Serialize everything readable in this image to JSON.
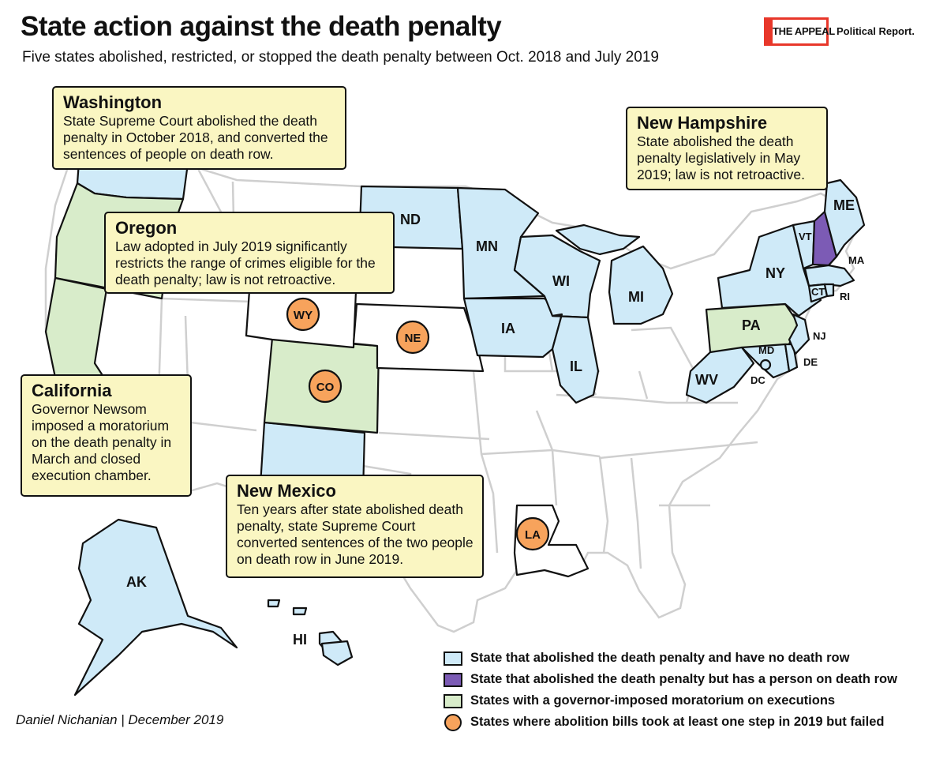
{
  "header": {
    "title": "State action against the death penalty",
    "subtitle": "Five states abolished, restricted, or stopped the death penalty between Oct. 2018 and July 2019"
  },
  "logo": {
    "brand": "THE APPEAL",
    "product": "Political Report."
  },
  "colors": {
    "abolished_no_row": "#cfeaf8",
    "abolished_with_row": "#7c5bb5",
    "moratorium": "#d8ecca",
    "failed_bill": "#f7a35c",
    "callout": "#faf6c2",
    "brand_red": "#e8372a"
  },
  "states": {
    "WA": "",
    "OR": "",
    "CA": "",
    "NM": "",
    "ND": "ND",
    "MN": "MN",
    "WI": "WI",
    "MI": "MI",
    "IA": "IA",
    "IL": "IL",
    "NY": "NY",
    "ME": "ME",
    "VT": "VT",
    "NH": "",
    "MA": "MA",
    "CT": "CT",
    "RI": "RI",
    "NJ": "NJ",
    "DE": "DE",
    "MD": "MD",
    "DC": "DC",
    "WV": "WV",
    "PA": "PA",
    "CO": "CO",
    "WY": "WY",
    "NE": "NE",
    "LA": "LA",
    "AK": "AK",
    "HI": "HI"
  },
  "callouts": {
    "washington": {
      "title": "Washington",
      "text": "State Supreme Court abolished the death penalty in October 2018, and converted the sentences of people on death row."
    },
    "oregon": {
      "title": "Oregon",
      "text": "Law adopted in July 2019 significantly restricts the range of crimes eligible for the death penalty; law is not retroactive."
    },
    "california": {
      "title": "California",
      "text": "Governor Newsom imposed a moratorium on the death penalty in March and closed execution chamber."
    },
    "new_mexico": {
      "title": "New Mexico",
      "text": "Ten years after state abolished death penalty, state Supreme Court converted sentences of the two people on death row in June 2019."
    },
    "new_hampshire": {
      "title": "New Hampshire",
      "text": "State abolished the death penalty legislatively in May 2019; law is not retroactive."
    }
  },
  "legend": [
    {
      "text": "State that abolished the death penalty and have no death row"
    },
    {
      "text": "State that abolished the death penalty but has a person on death row"
    },
    {
      "text": "States with a governor-imposed moratorium on executions"
    },
    {
      "text": "States where abolition bills took at least one step in 2019 but failed"
    }
  ],
  "credit": "Daniel Nichanian | December 2019"
}
